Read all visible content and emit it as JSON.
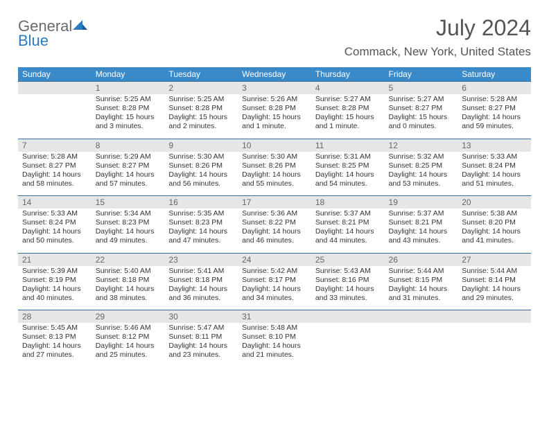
{
  "logo": {
    "word1": "General",
    "word2": "Blue"
  },
  "title": "July 2024",
  "location": "Commack, New York, United States",
  "header_bg": "#3a8ac9",
  "row_sep_color": "#3a6a9a",
  "daynum_bg": "#e6e6e6",
  "weekdays": [
    "Sunday",
    "Monday",
    "Tuesday",
    "Wednesday",
    "Thursday",
    "Friday",
    "Saturday"
  ],
  "weeks": [
    [
      {
        "n": "",
        "sr": "",
        "ss": "",
        "dl": ""
      },
      {
        "n": "1",
        "sr": "5:25 AM",
        "ss": "8:28 PM",
        "dl": "15 hours and 3 minutes."
      },
      {
        "n": "2",
        "sr": "5:25 AM",
        "ss": "8:28 PM",
        "dl": "15 hours and 2 minutes."
      },
      {
        "n": "3",
        "sr": "5:26 AM",
        "ss": "8:28 PM",
        "dl": "15 hours and 1 minute."
      },
      {
        "n": "4",
        "sr": "5:27 AM",
        "ss": "8:28 PM",
        "dl": "15 hours and 1 minute."
      },
      {
        "n": "5",
        "sr": "5:27 AM",
        "ss": "8:27 PM",
        "dl": "15 hours and 0 minutes."
      },
      {
        "n": "6",
        "sr": "5:28 AM",
        "ss": "8:27 PM",
        "dl": "14 hours and 59 minutes."
      }
    ],
    [
      {
        "n": "7",
        "sr": "5:28 AM",
        "ss": "8:27 PM",
        "dl": "14 hours and 58 minutes."
      },
      {
        "n": "8",
        "sr": "5:29 AM",
        "ss": "8:27 PM",
        "dl": "14 hours and 57 minutes."
      },
      {
        "n": "9",
        "sr": "5:30 AM",
        "ss": "8:26 PM",
        "dl": "14 hours and 56 minutes."
      },
      {
        "n": "10",
        "sr": "5:30 AM",
        "ss": "8:26 PM",
        "dl": "14 hours and 55 minutes."
      },
      {
        "n": "11",
        "sr": "5:31 AM",
        "ss": "8:25 PM",
        "dl": "14 hours and 54 minutes."
      },
      {
        "n": "12",
        "sr": "5:32 AM",
        "ss": "8:25 PM",
        "dl": "14 hours and 53 minutes."
      },
      {
        "n": "13",
        "sr": "5:33 AM",
        "ss": "8:24 PM",
        "dl": "14 hours and 51 minutes."
      }
    ],
    [
      {
        "n": "14",
        "sr": "5:33 AM",
        "ss": "8:24 PM",
        "dl": "14 hours and 50 minutes."
      },
      {
        "n": "15",
        "sr": "5:34 AM",
        "ss": "8:23 PM",
        "dl": "14 hours and 49 minutes."
      },
      {
        "n": "16",
        "sr": "5:35 AM",
        "ss": "8:23 PM",
        "dl": "14 hours and 47 minutes."
      },
      {
        "n": "17",
        "sr": "5:36 AM",
        "ss": "8:22 PM",
        "dl": "14 hours and 46 minutes."
      },
      {
        "n": "18",
        "sr": "5:37 AM",
        "ss": "8:21 PM",
        "dl": "14 hours and 44 minutes."
      },
      {
        "n": "19",
        "sr": "5:37 AM",
        "ss": "8:21 PM",
        "dl": "14 hours and 43 minutes."
      },
      {
        "n": "20",
        "sr": "5:38 AM",
        "ss": "8:20 PM",
        "dl": "14 hours and 41 minutes."
      }
    ],
    [
      {
        "n": "21",
        "sr": "5:39 AM",
        "ss": "8:19 PM",
        "dl": "14 hours and 40 minutes."
      },
      {
        "n": "22",
        "sr": "5:40 AM",
        "ss": "8:18 PM",
        "dl": "14 hours and 38 minutes."
      },
      {
        "n": "23",
        "sr": "5:41 AM",
        "ss": "8:18 PM",
        "dl": "14 hours and 36 minutes."
      },
      {
        "n": "24",
        "sr": "5:42 AM",
        "ss": "8:17 PM",
        "dl": "14 hours and 34 minutes."
      },
      {
        "n": "25",
        "sr": "5:43 AM",
        "ss": "8:16 PM",
        "dl": "14 hours and 33 minutes."
      },
      {
        "n": "26",
        "sr": "5:44 AM",
        "ss": "8:15 PM",
        "dl": "14 hours and 31 minutes."
      },
      {
        "n": "27",
        "sr": "5:44 AM",
        "ss": "8:14 PM",
        "dl": "14 hours and 29 minutes."
      }
    ],
    [
      {
        "n": "28",
        "sr": "5:45 AM",
        "ss": "8:13 PM",
        "dl": "14 hours and 27 minutes."
      },
      {
        "n": "29",
        "sr": "5:46 AM",
        "ss": "8:12 PM",
        "dl": "14 hours and 25 minutes."
      },
      {
        "n": "30",
        "sr": "5:47 AM",
        "ss": "8:11 PM",
        "dl": "14 hours and 23 minutes."
      },
      {
        "n": "31",
        "sr": "5:48 AM",
        "ss": "8:10 PM",
        "dl": "14 hours and 21 minutes."
      },
      {
        "n": "",
        "sr": "",
        "ss": "",
        "dl": ""
      },
      {
        "n": "",
        "sr": "",
        "ss": "",
        "dl": ""
      },
      {
        "n": "",
        "sr": "",
        "ss": "",
        "dl": ""
      }
    ]
  ],
  "labels": {
    "sunrise": "Sunrise: ",
    "sunset": "Sunset: ",
    "daylight": "Daylight: "
  }
}
